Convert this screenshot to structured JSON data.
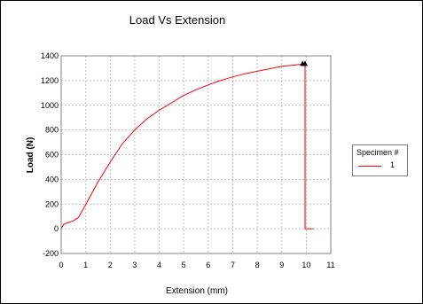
{
  "chart_data": {
    "type": "line",
    "title": "Load Vs Extension",
    "xlabel": "Extension (mm)",
    "ylabel": "Load (N)",
    "xlim": [
      0,
      11
    ],
    "ylim": [
      -200,
      1400
    ],
    "x_ticks": [
      0,
      1,
      2,
      3,
      4,
      5,
      6,
      7,
      8,
      9,
      10,
      11
    ],
    "y_ticks": [
      -200,
      0,
      200,
      400,
      600,
      800,
      1000,
      1200,
      1400
    ],
    "grid": true,
    "legend_position": "right",
    "legend_title": "Specimen #",
    "series": [
      {
        "name": "1",
        "color": "#ff0000",
        "x": [
          0,
          0.05,
          0.1,
          0.2,
          0.35,
          0.5,
          0.7,
          0.9,
          1.2,
          1.5,
          2.0,
          2.5,
          3.0,
          3.5,
          4.0,
          4.5,
          5.0,
          5.5,
          6.0,
          6.5,
          7.0,
          7.5,
          8.0,
          8.5,
          9.0,
          9.5,
          9.9,
          9.95,
          9.95,
          10.0,
          10.05,
          10.1,
          10.3
        ],
        "y": [
          0,
          20,
          35,
          45,
          55,
          65,
          90,
          160,
          270,
          380,
          540,
          690,
          800,
          890,
          960,
          1020,
          1080,
          1125,
          1165,
          1200,
          1230,
          1255,
          1275,
          1295,
          1315,
          1325,
          1335,
          1340,
          0,
          0,
          0,
          0,
          0
        ]
      }
    ],
    "markers": [
      {
        "x": 9.85,
        "y": 1340
      },
      {
        "x": 9.95,
        "y": 1340
      }
    ]
  },
  "colors": {
    "series": "#ff0000",
    "grid": "#bfbfbf",
    "marker": "#000000"
  }
}
